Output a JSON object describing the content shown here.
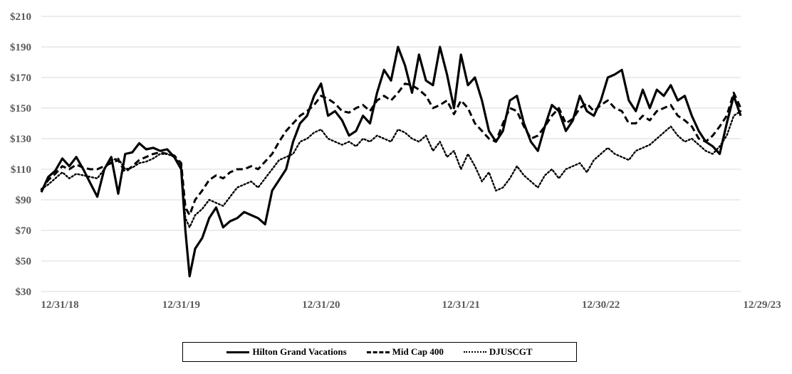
{
  "chart_data": {
    "type": "line",
    "title": "",
    "xlabel": "",
    "ylabel": "",
    "ylim": [
      30,
      210
    ],
    "yticks": [
      "$210",
      "$190",
      "$170",
      "$150",
      "$130",
      "$110",
      "$90",
      "$70",
      "$50",
      "$30"
    ],
    "ytick_values": [
      210,
      190,
      170,
      150,
      130,
      110,
      90,
      70,
      50,
      30
    ],
    "xticks": [
      "12/31/18",
      "12/31/19",
      "12/31/20",
      "12/31/21",
      "12/30/22",
      "12/29/23"
    ],
    "grid": true,
    "legend_position": "bottom",
    "x": [
      0,
      0.05,
      0.1,
      0.15,
      0.2,
      0.25,
      0.3,
      0.35,
      0.4,
      0.45,
      0.5,
      0.55,
      0.6,
      0.65,
      0.7,
      0.75,
      0.8,
      0.85,
      0.9,
      0.95,
      1.0,
      1.03,
      1.06,
      1.1,
      1.15,
      1.2,
      1.25,
      1.3,
      1.35,
      1.4,
      1.45,
      1.5,
      1.55,
      1.6,
      1.65,
      1.7,
      1.75,
      1.8,
      1.85,
      1.9,
      1.95,
      2.0,
      2.05,
      2.1,
      2.15,
      2.2,
      2.25,
      2.3,
      2.35,
      2.4,
      2.45,
      2.5,
      2.55,
      2.6,
      2.65,
      2.7,
      2.75,
      2.8,
      2.85,
      2.9,
      2.95,
      3.0,
      3.05,
      3.1,
      3.15,
      3.2,
      3.25,
      3.3,
      3.35,
      3.4,
      3.45,
      3.5,
      3.55,
      3.6,
      3.65,
      3.7,
      3.75,
      3.8,
      3.85,
      3.9,
      3.95,
      4.0,
      4.05,
      4.1,
      4.15,
      4.2,
      4.25,
      4.3,
      4.35,
      4.4,
      4.45,
      4.5,
      4.55,
      4.6,
      4.65,
      4.7,
      4.75,
      4.8,
      4.85,
      4.9,
      4.95,
      5.0
    ],
    "series": [
      {
        "name": "Hilton Grand Vacations",
        "style": "solid",
        "values": [
          95,
          105,
          109,
          117,
          112,
          118,
          110,
          101,
          92,
          110,
          118,
          94,
          120,
          121,
          127,
          123,
          124,
          122,
          123,
          118,
          110,
          70,
          40,
          58,
          65,
          78,
          85,
          72,
          76,
          78,
          82,
          80,
          78,
          74,
          96,
          103,
          110,
          128,
          140,
          145,
          158,
          166,
          145,
          148,
          142,
          132,
          135,
          145,
          140,
          160,
          175,
          168,
          190,
          178,
          160,
          185,
          168,
          165,
          190,
          172,
          150,
          185,
          165,
          170,
          155,
          135,
          128,
          135,
          155,
          158,
          140,
          128,
          122,
          138,
          152,
          148,
          135,
          142,
          158,
          148,
          145,
          155,
          170,
          172,
          175,
          155,
          148,
          162,
          150,
          162,
          158,
          165,
          155,
          158,
          145,
          135,
          128,
          125,
          120,
          140,
          158,
          145
        ]
      },
      {
        "name": "Mid Cap 400",
        "style": "dashed",
        "values": [
          96,
          103,
          107,
          112,
          110,
          113,
          111,
          110,
          110,
          112,
          114,
          116,
          108,
          112,
          116,
          118,
          120,
          121,
          120,
          119,
          114,
          85,
          80,
          90,
          96,
          103,
          106,
          104,
          108,
          110,
          110,
          112,
          110,
          115,
          120,
          128,
          135,
          140,
          145,
          148,
          152,
          158,
          156,
          153,
          148,
          147,
          150,
          152,
          148,
          155,
          158,
          155,
          160,
          166,
          165,
          162,
          158,
          150,
          152,
          155,
          146,
          155,
          150,
          140,
          135,
          130,
          128,
          140,
          150,
          148,
          138,
          130,
          132,
          138,
          145,
          150,
          140,
          143,
          150,
          153,
          148,
          152,
          155,
          150,
          148,
          140,
          140,
          145,
          142,
          148,
          150,
          152,
          145,
          142,
          138,
          130,
          128,
          132,
          138,
          145,
          160,
          150
        ]
      },
      {
        "name": "DJUSCGT",
        "style": "dotted",
        "values": [
          97,
          100,
          104,
          108,
          104,
          107,
          106,
          105,
          104,
          110,
          116,
          117,
          110,
          111,
          114,
          115,
          117,
          120,
          120,
          118,
          113,
          78,
          72,
          80,
          84,
          90,
          88,
          86,
          92,
          98,
          100,
          102,
          98,
          104,
          110,
          116,
          118,
          120,
          128,
          130,
          134,
          136,
          130,
          128,
          126,
          128,
          125,
          130,
          128,
          132,
          130,
          128,
          136,
          134,
          130,
          128,
          132,
          122,
          128,
          118,
          122,
          110,
          120,
          112,
          102,
          108,
          96,
          98,
          104,
          112,
          106,
          102,
          98,
          106,
          110,
          104,
          110,
          112,
          114,
          108,
          116,
          120,
          124,
          120,
          118,
          116,
          122,
          124,
          126,
          130,
          134,
          138,
          132,
          128,
          130,
          126,
          122,
          120,
          125,
          132,
          145,
          148
        ]
      }
    ]
  },
  "legend": {
    "items": [
      {
        "label": "Hilton Grand Vacations"
      },
      {
        "label": "Mid Cap 400"
      },
      {
        "label": "DJUSCGT"
      }
    ]
  },
  "colors": {
    "line": "#000000",
    "grid": "#d9d9d9",
    "tick_text": "#595959"
  }
}
